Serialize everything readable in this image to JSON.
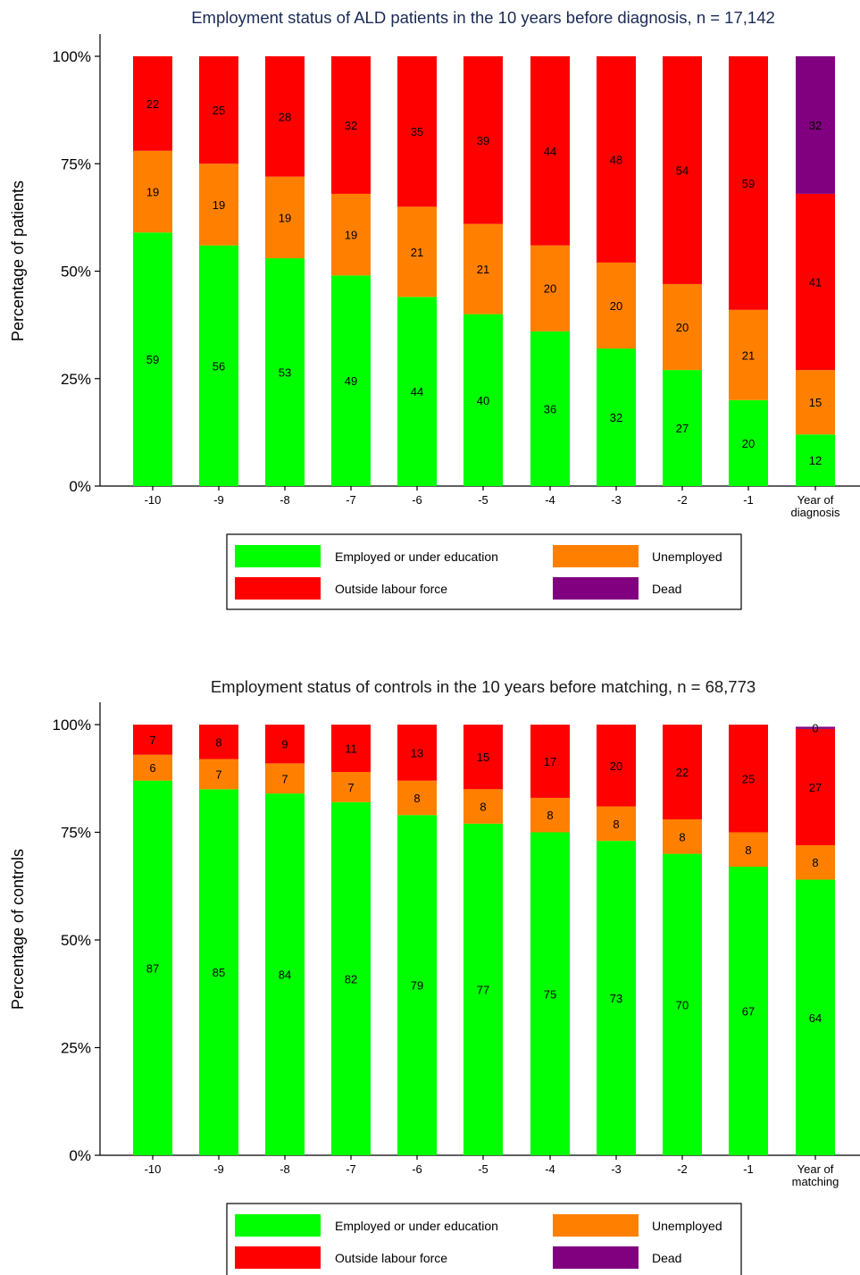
{
  "colors": {
    "employed": "#00ff00",
    "unemployed": "#ff8000",
    "outside": "#ff0000",
    "dead": "#800080"
  },
  "legend": {
    "employed": "Employed or under education",
    "unemployed": "Unemployed",
    "outside": "Outside labour force",
    "dead": "Dead"
  },
  "chart_data": [
    {
      "type": "bar",
      "stacked": true,
      "title": "Employment status of ALD patients in the 10 years before diagnosis, n = 17,142",
      "ylabel": "Percentage of patients",
      "xlabel": "",
      "ylim": [
        0,
        100
      ],
      "yticks": [
        "0%",
        "25%",
        "50%",
        "75%",
        "100%"
      ],
      "categories": [
        "-10",
        "-9",
        "-8",
        "-7",
        "-6",
        "-5",
        "-4",
        "-3",
        "-2",
        "-1",
        "Year of diagnosis"
      ],
      "series": [
        {
          "name": "Employed or under education",
          "key": "employed",
          "values": [
            59,
            56,
            53,
            49,
            44,
            40,
            36,
            32,
            27,
            20,
            12
          ]
        },
        {
          "name": "Unemployed",
          "key": "unemployed",
          "values": [
            19,
            19,
            19,
            19,
            21,
            21,
            20,
            20,
            20,
            21,
            15
          ]
        },
        {
          "name": "Outside labour force",
          "key": "outside",
          "values": [
            22,
            25,
            28,
            32,
            35,
            39,
            44,
            48,
            54,
            59,
            41
          ]
        },
        {
          "name": "Dead",
          "key": "dead",
          "values": [
            0,
            0,
            0,
            0,
            0,
            0,
            0,
            0,
            0,
            0,
            32
          ]
        }
      ],
      "grid": false,
      "legend_position": "bottom"
    },
    {
      "type": "bar",
      "stacked": true,
      "title": "Employment status of controls in the 10 years before matching, n =  68,773",
      "ylabel": "Percentage of controls",
      "xlabel": "",
      "ylim": [
        0,
        100
      ],
      "yticks": [
        "0%",
        "25%",
        "50%",
        "75%",
        "100%"
      ],
      "categories": [
        "-10",
        "-9",
        "-8",
        "-7",
        "-6",
        "-5",
        "-4",
        "-3",
        "-2",
        "-1",
        "Year of matching"
      ],
      "series": [
        {
          "name": "Employed or under education",
          "key": "employed",
          "values": [
            87,
            85,
            84,
            82,
            79,
            77,
            75,
            73,
            70,
            67,
            64
          ]
        },
        {
          "name": "Unemployed",
          "key": "unemployed",
          "values": [
            6,
            7,
            7,
            7,
            8,
            8,
            8,
            8,
            8,
            8,
            8
          ]
        },
        {
          "name": "Outside labour force",
          "key": "outside",
          "values": [
            7,
            8,
            9,
            11,
            13,
            15,
            17,
            20,
            22,
            25,
            27
          ]
        },
        {
          "name": "Dead",
          "key": "dead",
          "values": [
            0,
            0,
            0,
            0,
            0,
            0,
            0,
            0,
            0,
            0,
            0.5
          ]
        }
      ],
      "dead_label_last": "0",
      "grid": false,
      "legend_position": "bottom"
    }
  ]
}
